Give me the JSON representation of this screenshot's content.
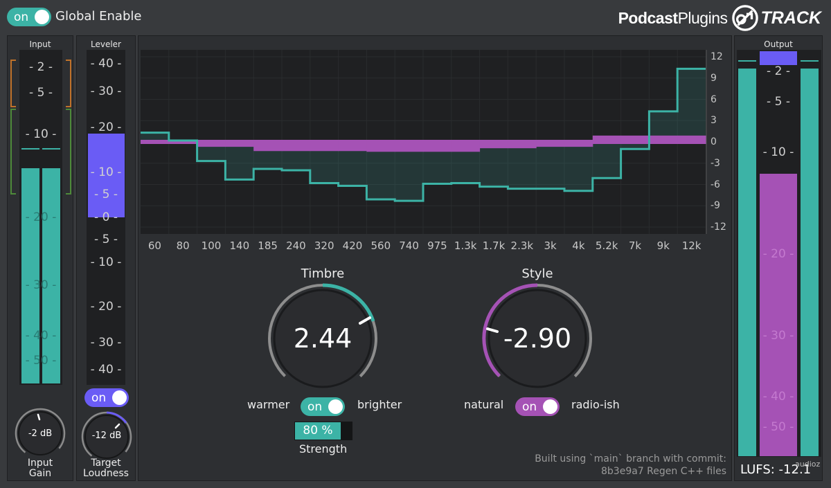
{
  "header": {
    "global_enable": {
      "state": "on",
      "label": "Global Enable"
    },
    "brand": {
      "part1": "Podcast",
      "part2": "Plugins",
      "product": "TRACK"
    }
  },
  "input_panel": {
    "title": "Input",
    "scale": [
      "2",
      "5",
      "10",
      "20",
      "30",
      "40",
      "50"
    ],
    "knob": {
      "value": "-2 dB",
      "caption_line1": "Input",
      "caption_line2": "Gain"
    }
  },
  "leveler_panel": {
    "title": "Leveler",
    "scale": [
      "40",
      "30",
      "20",
      "10",
      "5",
      "0",
      "5",
      "10",
      "20",
      "30",
      "40"
    ],
    "toggle": "on",
    "knob": {
      "value": "-12 dB",
      "caption_line1": "Target",
      "caption_line2": "Loudness"
    }
  },
  "eq": {
    "freq_labels": [
      "60",
      "80",
      "100",
      "140",
      "185",
      "240",
      "320",
      "420",
      "560",
      "740",
      "975",
      "1.3k",
      "1.7k",
      "2.3k",
      "3k",
      "4k",
      "5.2k",
      "7k",
      "9k",
      "12k"
    ],
    "db_labels": [
      "12",
      "9",
      "6",
      "3",
      "0",
      "-3",
      "-6",
      "-9",
      "-12"
    ],
    "teal_curve_db": [
      1.3,
      0.2,
      -2.7,
      -5.3,
      -3.8,
      -4.0,
      -5.8,
      -6.2,
      -8.1,
      -8.3,
      -5.9,
      -5.8,
      -6.3,
      -6.6,
      -6.6,
      -6.9,
      -5.1,
      -1.0,
      4.3,
      10.3
    ],
    "purple_curve_db": [
      0,
      0,
      -0.4,
      -0.4,
      -1.0,
      -1.0,
      -1.0,
      -1.0,
      -1.1,
      -1.1,
      -1.1,
      -1.1,
      -0.6,
      -0.6,
      -0.4,
      -0.4,
      0.6,
      0.6,
      0.6,
      0.6
    ]
  },
  "timbre": {
    "title": "Timbre",
    "value": "2.44",
    "left_label": "warmer",
    "right_label": "brighter",
    "toggle": "on",
    "strength": {
      "value": "80 %",
      "fraction": 0.8,
      "caption": "Strength"
    }
  },
  "style": {
    "title": "Style",
    "value": "-2.90",
    "left_label": "natural",
    "right_label": "radio-ish",
    "toggle": "on"
  },
  "footer": {
    "commit_line1": "Built using `main` branch with commit:",
    "commit_line2": "8b3e9a7 Regen C++ files"
  },
  "output_panel": {
    "title": "Output",
    "scale": [
      "2",
      "5",
      "10",
      "20",
      "30",
      "40",
      "50"
    ],
    "lufs": "LUFS: -12.1"
  },
  "watermark": "audioz",
  "colors": {
    "teal": "#3cb3a6",
    "purple": "#a552b5",
    "blue": "#6a5cf5"
  }
}
